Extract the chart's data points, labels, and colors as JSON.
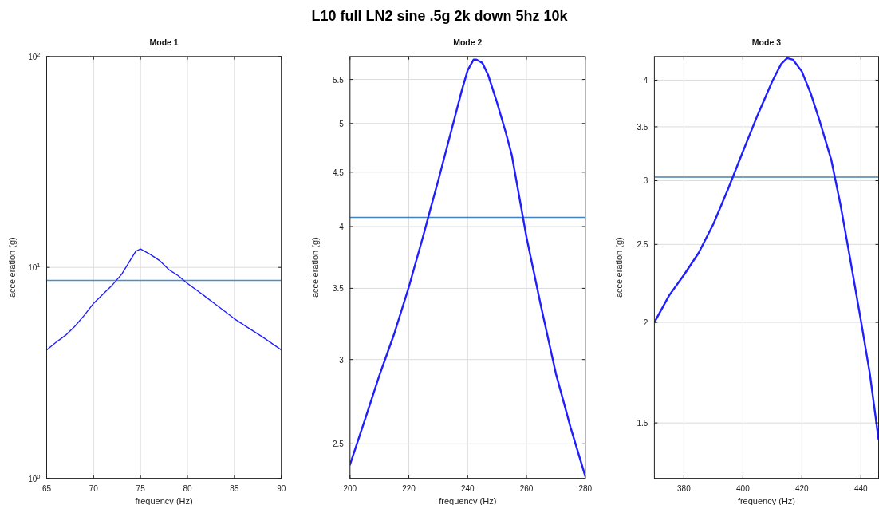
{
  "chart_data": [
    {
      "type": "line",
      "title": "Mode 1",
      "xlabel": "frequency (Hz)",
      "ylabel": "acceleration (g)",
      "annotations": [
        "L10 full LN2 sine .5g 2k down 5hz  10k"
      ],
      "log": "y",
      "grid": true,
      "xlim": [
        65,
        90
      ],
      "ylim": [
        1,
        100
      ],
      "xticks": [
        65,
        70,
        75,
        80,
        85,
        90
      ],
      "yticks": [
        {
          "value": 1,
          "label": "10$^{0}$"
        },
        {
          "value": 10,
          "label": "10$^{1}$"
        },
        {
          "value": 100,
          "label": "10$^{2}$"
        }
      ],
      "x": [
        65,
        66,
        67,
        68,
        69,
        70,
        71,
        72,
        73,
        74,
        74.5,
        75,
        76,
        77,
        78,
        79,
        80,
        82,
        83,
        85,
        86.5,
        88,
        90
      ],
      "series": [
        {
          "color": "#1f1fff",
          "values": [
            4.06,
            4.42,
            4.76,
            5.26,
            5.92,
            6.76,
            7.46,
            8.26,
            9.29,
            10.98,
            11.94,
            12.23,
            11.55,
            10.8,
            9.77,
            9.14,
            8.4,
            7.22,
            6.68,
            5.71,
            5.16,
            4.68,
            4.06
          ]
        }
      ],
      "ref_lines": [
        {
          "axis": "y",
          "value": 8.68,
          "color": "#3a94dc"
        }
      ]
    },
    {
      "type": "line",
      "title": "Mode 2",
      "xlabel": "frequency (Hz)",
      "ylabel": "acceleration (g)",
      "log": "y",
      "grid": true,
      "xlim": [
        200,
        280
      ],
      "ylim": [
        2.32,
        5.78
      ],
      "xticks": [
        200,
        220,
        240,
        260,
        280
      ],
      "yticks": [
        2.5,
        3,
        3.5,
        4,
        4.5,
        5,
        5.5
      ],
      "x": [
        200,
        205,
        210,
        215,
        220,
        225,
        227.5,
        230,
        235,
        238,
        240,
        242,
        243,
        245,
        247,
        250,
        253,
        255,
        257,
        260,
        265,
        270,
        275,
        280
      ],
      "series": [
        {
          "color": "#1f1fff",
          "values": [
            2.39,
            2.63,
            2.9,
            3.17,
            3.51,
            3.93,
            4.17,
            4.42,
            4.99,
            5.37,
            5.61,
            5.74,
            5.74,
            5.7,
            5.55,
            5.23,
            4.9,
            4.67,
            4.35,
            3.91,
            3.36,
            2.91,
            2.59,
            2.33
          ]
        }
      ],
      "ref_lines": [
        {
          "axis": "y",
          "value": 4.08,
          "color": "#3f84c0"
        }
      ]
    },
    {
      "type": "line",
      "title": "Mode 3",
      "xlabel": "frequency (Hz)",
      "ylabel": "acceleration (g)",
      "log": "y",
      "grid": true,
      "xlim": [
        370,
        446
      ],
      "ylim": [
        1.28,
        4.28
      ],
      "xticks": [
        380,
        400,
        420,
        440
      ],
      "yticks": [
        1.5,
        2,
        2.5,
        3,
        3.5,
        4
      ],
      "x": [
        370,
        375,
        380,
        385,
        390,
        395,
        400,
        405,
        410,
        413,
        415,
        417,
        420,
        423,
        426,
        430,
        433,
        436,
        440,
        443,
        446
      ],
      "series": [
        {
          "color": "#1f1fff",
          "values": [
            2.0,
            2.16,
            2.29,
            2.44,
            2.65,
            2.93,
            3.26,
            3.62,
            3.99,
            4.19,
            4.26,
            4.24,
            4.1,
            3.85,
            3.56,
            3.18,
            2.81,
            2.44,
            2.01,
            1.73,
            1.43
          ]
        }
      ],
      "ref_lines": [
        {
          "axis": "y",
          "value": 3.03,
          "color": "#4a7fa8"
        }
      ]
    }
  ]
}
